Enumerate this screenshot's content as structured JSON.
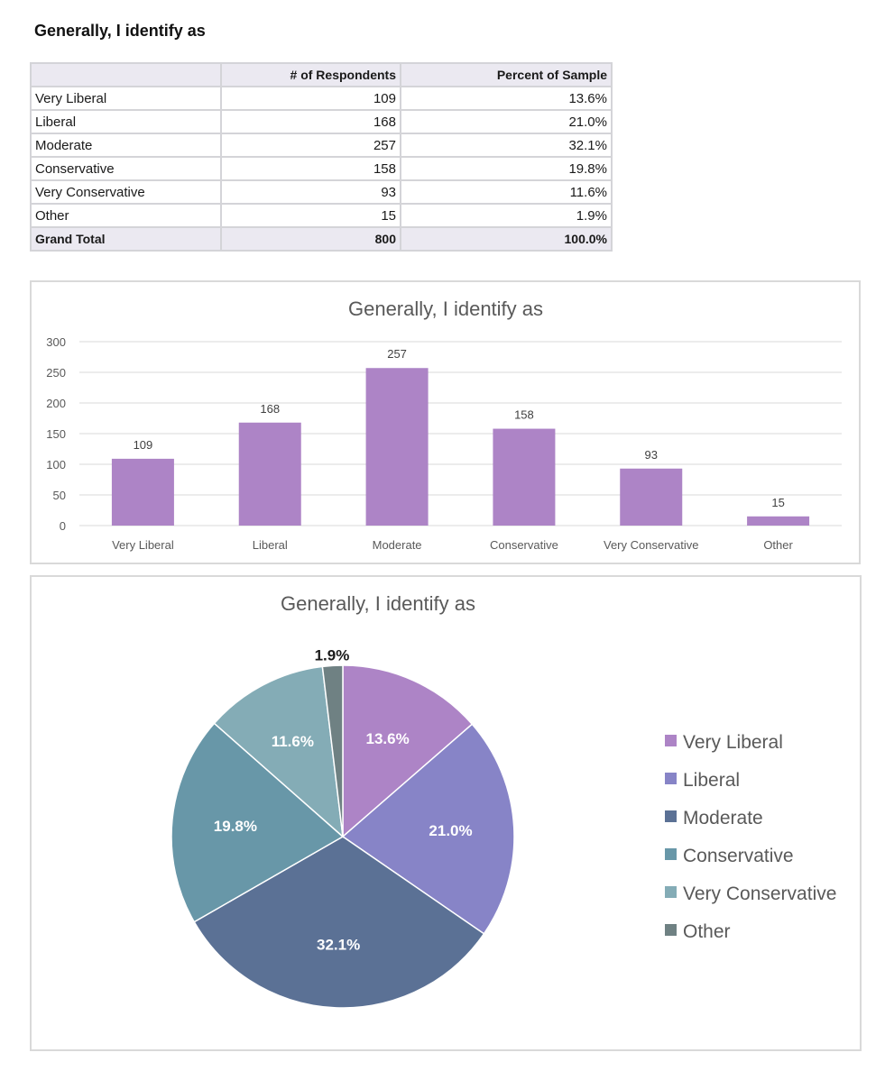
{
  "page": {
    "title": "Generally, I identify as"
  },
  "table": {
    "headers": [
      "",
      "# of Respondents",
      "Percent of Sample"
    ],
    "rows": [
      [
        "Very Liberal",
        "109",
        "13.6%"
      ],
      [
        "Liberal",
        "168",
        "21.0%"
      ],
      [
        "Moderate",
        "257",
        "32.1%"
      ],
      [
        "Conservative",
        "158",
        "19.8%"
      ],
      [
        "Very Conservative",
        "93",
        "11.6%"
      ],
      [
        "Other",
        "15",
        "1.9%"
      ]
    ],
    "total": [
      "Grand Total",
      "800",
      "100.0%"
    ]
  },
  "chart_data": [
    {
      "type": "bar",
      "title": "Generally, I identify as",
      "categories": [
        "Very Liberal",
        "Liberal",
        "Moderate",
        "Conservative",
        "Very Conservative",
        "Other"
      ],
      "values": [
        109,
        168,
        257,
        158,
        93,
        15
      ],
      "data_labels": [
        "109",
        "168",
        "257",
        "158",
        "93",
        "15"
      ],
      "ylim": [
        0,
        300
      ],
      "yticks": [
        0,
        50,
        100,
        150,
        200,
        250,
        300
      ],
      "grid": true,
      "color": "#ad84c6"
    },
    {
      "type": "pie",
      "title": "Generally, I identify as",
      "categories": [
        "Very Liberal",
        "Liberal",
        "Moderate",
        "Conservative",
        "Very Conservative",
        "Other"
      ],
      "values": [
        13.6,
        21.0,
        32.1,
        19.8,
        11.6,
        1.9
      ],
      "data_labels": [
        "13.6%",
        "21.0%",
        "32.1%",
        "19.8%",
        "11.6%",
        "1.9%"
      ],
      "colors": [
        "#ad84c6",
        "#8784c7",
        "#5b7195",
        "#6897a8",
        "#84acb6",
        "#6f8183"
      ],
      "legend": "right"
    }
  ]
}
